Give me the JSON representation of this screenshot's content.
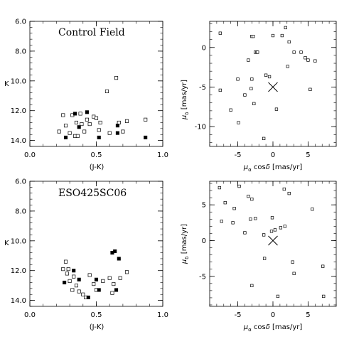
{
  "figure": {
    "colors": {
      "ink": "#000000",
      "background": "#ffffff"
    }
  },
  "chart_data": [
    {
      "id": "cmd-control",
      "type": "scatter",
      "title": "Control Field",
      "xlabel": "",
      "ylabel": "K",
      "xlim": [
        0.0,
        1.0
      ],
      "ylim": [
        14.4,
        6.0
      ],
      "y_inverted": true,
      "xticks": [
        "0.0",
        "0.5",
        "1.0"
      ],
      "yticks": [
        "6.0",
        "8.0",
        "10.0",
        "12.0",
        "14.0"
      ],
      "xtick_values": [
        0.0,
        0.5,
        1.0
      ],
      "ytick_values": [
        6.0,
        8.0,
        10.0,
        12.0,
        14.0
      ],
      "series": [
        {
          "marker": "open-square",
          "points": [
            [
              0.22,
              13.4
            ],
            [
              0.25,
              12.3
            ],
            [
              0.27,
              13.0
            ],
            [
              0.3,
              13.5
            ],
            [
              0.32,
              12.3
            ],
            [
              0.34,
              13.7
            ],
            [
              0.35,
              12.8
            ],
            [
              0.36,
              13.7
            ],
            [
              0.38,
              12.2
            ],
            [
              0.39,
              12.9
            ],
            [
              0.41,
              13.4
            ],
            [
              0.43,
              12.6
            ],
            [
              0.45,
              12.9
            ],
            [
              0.48,
              12.4
            ],
            [
              0.5,
              12.5
            ],
            [
              0.52,
              13.3
            ],
            [
              0.53,
              12.8
            ],
            [
              0.58,
              10.7
            ],
            [
              0.6,
              13.5
            ],
            [
              0.65,
              9.8
            ],
            [
              0.67,
              12.8
            ],
            [
              0.7,
              13.4
            ],
            [
              0.73,
              12.7
            ],
            [
              0.87,
              12.6
            ]
          ]
        },
        {
          "marker": "filled-square",
          "points": [
            [
              0.27,
              13.8
            ],
            [
              0.34,
              12.2
            ],
            [
              0.37,
              13.1
            ],
            [
              0.43,
              12.1
            ],
            [
              0.52,
              13.8
            ],
            [
              0.66,
              13.0
            ],
            [
              0.66,
              13.5
            ],
            [
              0.87,
              13.8
            ]
          ]
        }
      ]
    },
    {
      "id": "pm-control",
      "type": "scatter",
      "xlabel": "",
      "ylabel": "",
      "xlim": [
        -9,
        9
      ],
      "ylim": [
        -12.5,
        3.3
      ],
      "xticks": [
        "-5",
        "0",
        "5"
      ],
      "yticks": [
        "0",
        "-5",
        "-10"
      ],
      "xtick_values": [
        -5,
        0,
        5
      ],
      "ytick_values": [
        0,
        -5,
        -10
      ],
      "center_marker": {
        "label": "×",
        "x": 0,
        "y": -5
      },
      "series": [
        {
          "marker": "open-square",
          "points": [
            [
              -7.5,
              1.8
            ],
            [
              -7.5,
              -5.4
            ],
            [
              -6.0,
              -7.9
            ],
            [
              -5.0,
              -4.0
            ],
            [
              -4.9,
              -9.5
            ],
            [
              -4.0,
              -6.0
            ],
            [
              -3.5,
              -1.6
            ],
            [
              -3.1,
              -5.2
            ],
            [
              -3.0,
              -4.0
            ],
            [
              -3.0,
              1.4
            ],
            [
              -2.8,
              1.4
            ],
            [
              -2.7,
              -7.1
            ],
            [
              -2.5,
              -0.6
            ],
            [
              -2.3,
              -0.6
            ],
            [
              -2.2,
              -0.6
            ],
            [
              -1.3,
              -11.5
            ],
            [
              -1.0,
              -3.5
            ],
            [
              -0.5,
              -3.7
            ],
            [
              0.0,
              1.5
            ],
            [
              0.5,
              -7.8
            ],
            [
              1.3,
              1.5
            ],
            [
              1.8,
              2.5
            ],
            [
              2.1,
              -2.4
            ],
            [
              2.3,
              0.7
            ],
            [
              3.0,
              -0.6
            ],
            [
              4.0,
              -0.6
            ],
            [
              4.6,
              -1.3
            ],
            [
              5.0,
              -1.6
            ],
            [
              5.3,
              -5.3
            ],
            [
              6.0,
              -1.7
            ]
          ]
        }
      ]
    },
    {
      "id": "cmd-eso",
      "type": "scatter",
      "title": "ESO425SC06",
      "xlabel": "(J-K)",
      "ylabel": "K",
      "xlim": [
        0.0,
        1.0
      ],
      "ylim": [
        14.4,
        6.0
      ],
      "y_inverted": true,
      "xticks": [
        "0.0",
        "0.5",
        "1.0"
      ],
      "yticks": [
        "6.0",
        "8.0",
        "10.0",
        "12.0",
        "14.0"
      ],
      "xtick_values": [
        0.0,
        0.5,
        1.0
      ],
      "ytick_values": [
        6.0,
        8.0,
        10.0,
        12.0,
        14.0
      ],
      "series": [
        {
          "marker": "open-square",
          "points": [
            [
              0.25,
              11.9
            ],
            [
              0.27,
              11.4
            ],
            [
              0.28,
              12.2
            ],
            [
              0.29,
              11.9
            ],
            [
              0.3,
              12.7
            ],
            [
              0.32,
              13.3
            ],
            [
              0.33,
              12.4
            ],
            [
              0.35,
              13.0
            ],
            [
              0.37,
              13.4
            ],
            [
              0.4,
              13.6
            ],
            [
              0.42,
              13.8
            ],
            [
              0.45,
              12.3
            ],
            [
              0.48,
              12.9
            ],
            [
              0.5,
              13.3
            ],
            [
              0.55,
              12.7
            ],
            [
              0.6,
              12.5
            ],
            [
              0.63,
              12.9
            ],
            [
              0.68,
              12.5
            ],
            [
              0.73,
              12.1
            ],
            [
              0.62,
              13.5
            ]
          ]
        },
        {
          "marker": "filled-square",
          "points": [
            [
              0.26,
              12.8
            ],
            [
              0.33,
              12.0
            ],
            [
              0.37,
              12.6
            ],
            [
              0.44,
              13.8
            ],
            [
              0.5,
              12.6
            ],
            [
              0.52,
              13.3
            ],
            [
              0.62,
              10.8
            ],
            [
              0.64,
              10.7
            ],
            [
              0.65,
              13.3
            ],
            [
              0.67,
              11.2
            ]
          ]
        }
      ]
    },
    {
      "id": "pm-eso",
      "type": "scatter",
      "xlabel": "μα cosδ  [mas/yr]",
      "ylabel": "μδ  [mas/yr]",
      "xlim": [
        -9,
        9
      ],
      "ylim": [
        -9.2,
        8.3
      ],
      "xticks": [
        "-5",
        "0",
        "5"
      ],
      "yticks": [
        "5",
        "0",
        "-5"
      ],
      "xtick_values": [
        -5,
        0,
        5
      ],
      "ytick_values": [
        5,
        0,
        -5
      ],
      "center_marker": {
        "label": "×",
        "x": 0,
        "y": 0
      },
      "series": [
        {
          "marker": "open-square",
          "points": [
            [
              -7.6,
              7.4
            ],
            [
              -7.3,
              2.7
            ],
            [
              -6.8,
              5.3
            ],
            [
              -5.7,
              2.5
            ],
            [
              -5.5,
              4.5
            ],
            [
              -4.8,
              7.6
            ],
            [
              -4.0,
              1.1
            ],
            [
              -3.5,
              6.2
            ],
            [
              -3.2,
              3.0
            ],
            [
              -3.0,
              5.8
            ],
            [
              -3.0,
              -6.3
            ],
            [
              -2.5,
              3.1
            ],
            [
              -1.3,
              0.8
            ],
            [
              -1.2,
              -2.5
            ],
            [
              -0.1,
              3.2
            ],
            [
              -0.2,
              1.3
            ],
            [
              0.3,
              1.5
            ],
            [
              0.7,
              -7.8
            ],
            [
              1.1,
              1.8
            ],
            [
              1.6,
              7.2
            ],
            [
              1.7,
              2.0
            ],
            [
              2.3,
              6.6
            ],
            [
              2.8,
              -3.0
            ],
            [
              3.0,
              -4.6
            ],
            [
              5.6,
              4.4
            ],
            [
              7.1,
              -3.6
            ],
            [
              7.2,
              -7.8
            ]
          ]
        }
      ]
    }
  ]
}
